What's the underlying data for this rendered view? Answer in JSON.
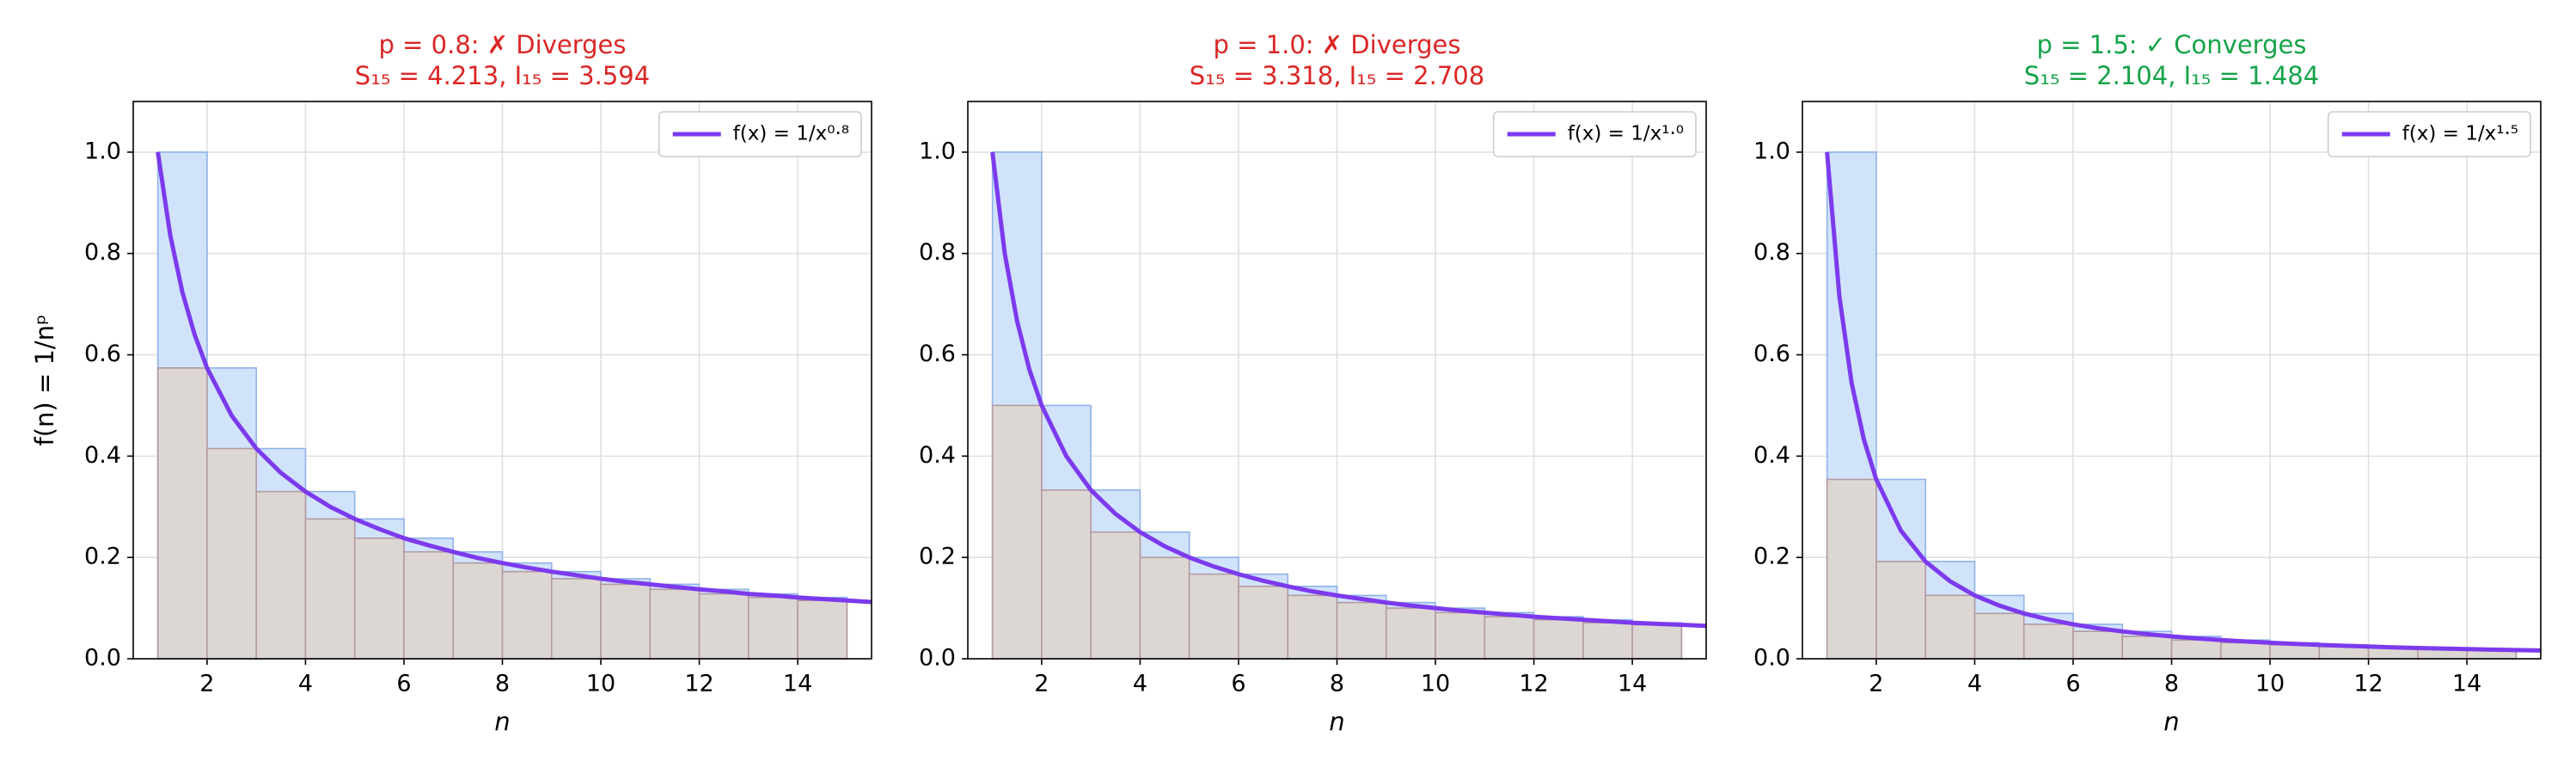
{
  "chart_data": [
    {
      "type": "histogram",
      "title": "p = 0.8: ✗ Diverges",
      "subtitle": "S₁₅ = 4.213, I₁₅ = 3.594",
      "title_color": "#dc2626",
      "xlabel": "n",
      "ylabel": "f(n) = 1/nᵖ",
      "bins": [
        1,
        2,
        3,
        4,
        5,
        6,
        7,
        8,
        9,
        10,
        11,
        12,
        13,
        14,
        15
      ],
      "series": [
        {
          "color": "#cfe2fb",
          "edge_color": "#8fb3e8",
          "values": [
            1,
            0.574,
            0.415,
            0.33,
            0.276,
            0.238,
            0.211,
            0.189,
            0.172,
            0.158,
            0.147,
            0.137,
            0.128,
            0.121
          ]
        },
        {
          "color": "#ddd6d2",
          "edge_color": "#b39aa0",
          "values": [
            0.574,
            0.415,
            0.33,
            0.276,
            0.238,
            0.211,
            0.189,
            0.172,
            0.158,
            0.147,
            0.137,
            0.128,
            0.121,
            0.115
          ]
        }
      ],
      "line": {
        "name": "f(x) = 1/x⁰·⁸",
        "color": "#7c3aed",
        "x": [
          1,
          1.25,
          1.5,
          1.75,
          2,
          2.5,
          3,
          3.5,
          4,
          4.5,
          5,
          5.5,
          6,
          6.5,
          7,
          7.5,
          8,
          8.5,
          9,
          9.5,
          10,
          10.5,
          11,
          11.5,
          12,
          12.5,
          13,
          13.5,
          14,
          14.5,
          15,
          15.5
        ],
        "values": [
          1,
          0.837,
          0.723,
          0.639,
          0.574,
          0.48,
          0.415,
          0.367,
          0.33,
          0.3,
          0.276,
          0.256,
          0.238,
          0.224,
          0.211,
          0.199,
          0.189,
          0.18,
          0.172,
          0.165,
          0.158,
          0.152,
          0.147,
          0.142,
          0.137,
          0.133,
          0.128,
          0.125,
          0.121,
          0.118,
          0.115,
          0.112
        ]
      },
      "xlim": [
        0.5,
        15.5
      ],
      "ylim": [
        0,
        1.1
      ],
      "xticks": [
        2,
        4,
        6,
        8,
        10,
        12,
        14
      ],
      "yticks": [
        {
          "value": 0,
          "label": "0.0"
        },
        0.2,
        0.4,
        0.6,
        0.8,
        {
          "value": 1,
          "label": "1.0"
        }
      ],
      "grid": true,
      "legend": "upper right"
    },
    {
      "type": "histogram",
      "title": "p = 1.0: ✗ Diverges",
      "subtitle": "S₁₅ = 3.318, I₁₅ = 2.708",
      "title_color": "#dc2626",
      "xlabel": "n",
      "bins": [
        1,
        2,
        3,
        4,
        5,
        6,
        7,
        8,
        9,
        10,
        11,
        12,
        13,
        14,
        15
      ],
      "series": [
        {
          "color": "#cfe2fb",
          "edge_color": "#8fb3e8",
          "values": [
            1,
            0.5,
            0.333,
            0.25,
            0.2,
            0.167,
            0.143,
            0.125,
            0.111,
            0.1,
            0.091,
            0.083,
            0.077,
            0.071
          ]
        },
        {
          "color": "#ddd6d2",
          "edge_color": "#b39aa0",
          "values": [
            0.5,
            0.333,
            0.25,
            0.2,
            0.167,
            0.143,
            0.125,
            0.111,
            0.1,
            0.091,
            0.083,
            0.077,
            0.071,
            0.067
          ]
        }
      ],
      "line": {
        "name": "f(x) = 1/x¹·⁰",
        "color": "#7c3aed",
        "x": [
          1,
          1.25,
          1.5,
          1.75,
          2,
          2.5,
          3,
          3.5,
          4,
          4.5,
          5,
          5.5,
          6,
          6.5,
          7,
          7.5,
          8,
          8.5,
          9,
          9.5,
          10,
          10.5,
          11,
          11.5,
          12,
          12.5,
          13,
          13.5,
          14,
          14.5,
          15,
          15.5
        ],
        "values": [
          1,
          0.8,
          0.667,
          0.571,
          0.5,
          0.4,
          0.333,
          0.286,
          0.25,
          0.222,
          0.2,
          0.182,
          0.167,
          0.154,
          0.143,
          0.133,
          0.125,
          0.118,
          0.111,
          0.105,
          0.1,
          0.095,
          0.091,
          0.087,
          0.083,
          0.08,
          0.077,
          0.074,
          0.071,
          0.069,
          0.067,
          0.065
        ]
      },
      "xlim": [
        0.5,
        15.5
      ],
      "ylim": [
        0,
        1.1
      ],
      "xticks": [
        2,
        4,
        6,
        8,
        10,
        12,
        14
      ],
      "yticks": [
        {
          "value": 0,
          "label": "0.0"
        },
        0.2,
        0.4,
        0.6,
        0.8,
        {
          "value": 1,
          "label": "1.0"
        }
      ],
      "grid": true,
      "legend": "upper right"
    },
    {
      "type": "histogram",
      "title": "p = 1.5: ✓ Converges",
      "subtitle": "S₁₅ = 2.104, I₁₅ = 1.484",
      "title_color": "#16a34a",
      "xlabel": "n",
      "bins": [
        1,
        2,
        3,
        4,
        5,
        6,
        7,
        8,
        9,
        10,
        11,
        12,
        13,
        14,
        15
      ],
      "series": [
        {
          "color": "#cfe2fb",
          "edge_color": "#8fb3e8",
          "values": [
            1,
            0.354,
            0.192,
            0.125,
            0.0894,
            0.068,
            0.054,
            0.0442,
            0.037,
            0.0316,
            0.0274,
            0.0241,
            0.0213,
            0.0191
          ]
        },
        {
          "color": "#ddd6d2",
          "edge_color": "#b39aa0",
          "values": [
            0.354,
            0.192,
            0.125,
            0.0894,
            0.068,
            0.054,
            0.0442,
            0.037,
            0.0316,
            0.0274,
            0.0241,
            0.0213,
            0.0191,
            0.0172
          ]
        }
      ],
      "line": {
        "name": "f(x) = 1/x¹·⁵",
        "color": "#7c3aed",
        "x": [
          1,
          1.25,
          1.5,
          1.75,
          2,
          2.5,
          3,
          3.5,
          4,
          4.5,
          5,
          5.5,
          6,
          6.5,
          7,
          7.5,
          8,
          8.5,
          9,
          9.5,
          10,
          10.5,
          11,
          11.5,
          12,
          12.5,
          13,
          13.5,
          14,
          14.5,
          15,
          15.5
        ],
        "values": [
          1,
          0.716,
          0.544,
          0.432,
          0.354,
          0.253,
          0.192,
          0.153,
          0.125,
          0.105,
          0.0894,
          0.0775,
          0.068,
          0.0603,
          0.054,
          0.0487,
          0.0442,
          0.0404,
          0.037,
          0.0342,
          0.0316,
          0.0294,
          0.0274,
          0.0256,
          0.0241,
          0.0226,
          0.0213,
          0.0202,
          0.0191,
          0.0181,
          0.0172,
          0.0164
        ]
      },
      "xlim": [
        0.5,
        15.5
      ],
      "ylim": [
        0,
        1.1
      ],
      "xticks": [
        2,
        4,
        6,
        8,
        10,
        12,
        14
      ],
      "yticks": [
        {
          "value": 0,
          "label": "0.0"
        },
        0.2,
        0.4,
        0.6,
        0.8,
        {
          "value": 1,
          "label": "1.0"
        }
      ],
      "grid": true,
      "legend": "upper right"
    }
  ]
}
